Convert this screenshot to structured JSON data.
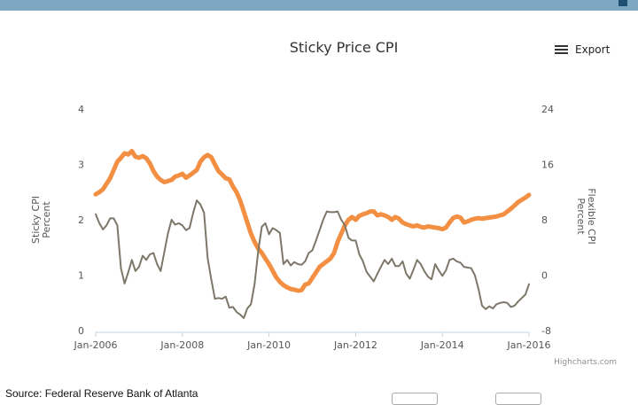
{
  "header": {
    "menu_icon": "menu-square-icon"
  },
  "export": {
    "label": "Export",
    "icon": "hamburger-menu-icon"
  },
  "credit": "Highcharts.com",
  "source": "Source: Federal Reserve Bank of Atlanta",
  "chart_data": {
    "type": "line",
    "title": "Sticky Price CPI",
    "xlabel": "",
    "ylabel_left": [
      "Sticky CPI",
      "Percent"
    ],
    "ylabel_right": [
      "Flexible CPI",
      "Percent"
    ],
    "x_tick_labels": [
      "Jan-2006",
      "Jan-2008",
      "Jan-2010",
      "Jan-2012",
      "Jan-2014",
      "Jan-2016"
    ],
    "y_left": {
      "min": 0,
      "max": 4,
      "ticks": [
        0,
        1,
        2,
        3,
        4
      ]
    },
    "y_right": {
      "min": -8,
      "max": 24,
      "ticks": [
        -8,
        0,
        8,
        16,
        24
      ]
    },
    "grid": false,
    "series": [
      {
        "name": "Sticky CPI",
        "axis": "left",
        "color": "#f28f43",
        "points": [
          [
            "2006-01",
            2.46
          ],
          [
            "2006-02",
            2.5
          ],
          [
            "2006-03",
            2.55
          ],
          [
            "2006-04",
            2.65
          ],
          [
            "2006-05",
            2.75
          ],
          [
            "2006-06",
            2.9
          ],
          [
            "2006-07",
            3.05
          ],
          [
            "2006-08",
            3.12
          ],
          [
            "2006-09",
            3.2
          ],
          [
            "2006-10",
            3.18
          ],
          [
            "2006-11",
            3.24
          ],
          [
            "2006-12",
            3.14
          ],
          [
            "2007-01",
            3.12
          ],
          [
            "2007-02",
            3.15
          ],
          [
            "2007-03",
            3.11
          ],
          [
            "2007-04",
            3.02
          ],
          [
            "2007-05",
            2.88
          ],
          [
            "2007-06",
            2.78
          ],
          [
            "2007-07",
            2.72
          ],
          [
            "2007-08",
            2.68
          ],
          [
            "2007-09",
            2.7
          ],
          [
            "2007-10",
            2.72
          ],
          [
            "2007-11",
            2.78
          ],
          [
            "2007-12",
            2.8
          ],
          [
            "2008-01",
            2.83
          ],
          [
            "2008-02",
            2.76
          ],
          [
            "2008-03",
            2.8
          ],
          [
            "2008-04",
            2.85
          ],
          [
            "2008-05",
            2.9
          ],
          [
            "2008-06",
            3.05
          ],
          [
            "2008-07",
            3.13
          ],
          [
            "2008-08",
            3.17
          ],
          [
            "2008-09",
            3.13
          ],
          [
            "2008-10",
            3.0
          ],
          [
            "2008-11",
            2.88
          ],
          [
            "2008-12",
            2.82
          ],
          [
            "2009-01",
            2.75
          ],
          [
            "2009-02",
            2.73
          ],
          [
            "2009-03",
            2.6
          ],
          [
            "2009-04",
            2.5
          ],
          [
            "2009-05",
            2.35
          ],
          [
            "2009-06",
            2.15
          ],
          [
            "2009-07",
            1.95
          ],
          [
            "2009-08",
            1.75
          ],
          [
            "2009-09",
            1.6
          ],
          [
            "2009-10",
            1.48
          ],
          [
            "2009-11",
            1.4
          ],
          [
            "2009-12",
            1.3
          ],
          [
            "2010-01",
            1.2
          ],
          [
            "2010-02",
            1.08
          ],
          [
            "2010-03",
            0.96
          ],
          [
            "2010-04",
            0.88
          ],
          [
            "2010-05",
            0.82
          ],
          [
            "2010-06",
            0.78
          ],
          [
            "2010-07",
            0.75
          ],
          [
            "2010-08",
            0.74
          ],
          [
            "2010-09",
            0.72
          ],
          [
            "2010-10",
            0.73
          ],
          [
            "2010-11",
            0.83
          ],
          [
            "2010-12",
            0.85
          ],
          [
            "2011-01",
            0.95
          ],
          [
            "2011-02",
            1.05
          ],
          [
            "2011-03",
            1.15
          ],
          [
            "2011-04",
            1.2
          ],
          [
            "2011-05",
            1.25
          ],
          [
            "2011-06",
            1.3
          ],
          [
            "2011-07",
            1.4
          ],
          [
            "2011-08",
            1.6
          ],
          [
            "2011-09",
            1.75
          ],
          [
            "2011-10",
            1.9
          ],
          [
            "2011-11",
            2.0
          ],
          [
            "2011-12",
            2.05
          ],
          [
            "2012-01",
            2.0
          ],
          [
            "2012-02",
            2.07
          ],
          [
            "2012-03",
            2.1
          ],
          [
            "2012-04",
            2.12
          ],
          [
            "2012-05",
            2.15
          ],
          [
            "2012-06",
            2.15
          ],
          [
            "2012-07",
            2.08
          ],
          [
            "2012-08",
            2.1
          ],
          [
            "2012-09",
            2.08
          ],
          [
            "2012-10",
            2.05
          ],
          [
            "2012-11",
            2.0
          ],
          [
            "2012-12",
            2.05
          ],
          [
            "2013-01",
            2.02
          ],
          [
            "2013-02",
            1.95
          ],
          [
            "2013-03",
            1.92
          ],
          [
            "2013-04",
            1.9
          ],
          [
            "2013-05",
            1.88
          ],
          [
            "2013-06",
            1.9
          ],
          [
            "2013-07",
            1.87
          ],
          [
            "2013-08",
            1.86
          ],
          [
            "2013-09",
            1.88
          ],
          [
            "2013-10",
            1.87
          ],
          [
            "2013-11",
            1.86
          ],
          [
            "2013-12",
            1.85
          ],
          [
            "2014-01",
            1.83
          ],
          [
            "2014-02",
            1.86
          ],
          [
            "2014-03",
            1.95
          ],
          [
            "2014-04",
            2.03
          ],
          [
            "2014-05",
            2.06
          ],
          [
            "2014-06",
            2.04
          ],
          [
            "2014-07",
            1.95
          ],
          [
            "2014-08",
            1.97
          ],
          [
            "2014-09",
            2.0
          ],
          [
            "2014-10",
            2.02
          ],
          [
            "2014-11",
            2.03
          ],
          [
            "2014-12",
            2.02
          ],
          [
            "2015-01",
            2.03
          ],
          [
            "2015-02",
            2.04
          ],
          [
            "2015-03",
            2.05
          ],
          [
            "2015-04",
            2.06
          ],
          [
            "2015-05",
            2.08
          ],
          [
            "2015-06",
            2.1
          ],
          [
            "2015-07",
            2.15
          ],
          [
            "2015-08",
            2.2
          ],
          [
            "2015-09",
            2.26
          ],
          [
            "2015-10",
            2.32
          ],
          [
            "2015-11",
            2.36
          ],
          [
            "2015-12",
            2.4
          ],
          [
            "2016-01",
            2.45
          ]
        ]
      },
      {
        "name": "Flexible CPI",
        "axis": "right",
        "color": "#7d776a",
        "points": [
          [
            "2006-01",
            8.8
          ],
          [
            "2006-02",
            7.5
          ],
          [
            "2006-03",
            6.6
          ],
          [
            "2006-04",
            7.2
          ],
          [
            "2006-05",
            8.2
          ],
          [
            "2006-06",
            8.2
          ],
          [
            "2006-07",
            7.2
          ],
          [
            "2006-08",
            1.0
          ],
          [
            "2006-09",
            -1.2
          ],
          [
            "2006-10",
            0.4
          ],
          [
            "2006-11",
            2.2
          ],
          [
            "2006-12",
            0.6
          ],
          [
            "2007-01",
            1.2
          ],
          [
            "2007-02",
            2.8
          ],
          [
            "2007-03",
            2.2
          ],
          [
            "2007-04",
            3.0
          ],
          [
            "2007-05",
            3.2
          ],
          [
            "2007-06",
            1.6
          ],
          [
            "2007-07",
            0.6
          ],
          [
            "2007-08",
            3.3
          ],
          [
            "2007-09",
            6.0
          ],
          [
            "2007-10",
            8.0
          ],
          [
            "2007-11",
            7.3
          ],
          [
            "2007-12",
            7.5
          ],
          [
            "2008-01",
            7.2
          ],
          [
            "2008-02",
            6.5
          ],
          [
            "2008-03",
            6.8
          ],
          [
            "2008-04",
            9.0
          ],
          [
            "2008-05",
            10.8
          ],
          [
            "2008-06",
            10.2
          ],
          [
            "2008-07",
            9.0
          ],
          [
            "2008-08",
            2.5
          ],
          [
            "2008-09",
            -0.6
          ],
          [
            "2008-10",
            -3.4
          ],
          [
            "2008-11",
            -3.3
          ],
          [
            "2008-12",
            -3.4
          ],
          [
            "2009-01",
            -3.1
          ],
          [
            "2009-02",
            -4.7
          ],
          [
            "2009-03",
            -4.6
          ],
          [
            "2009-04",
            -5.3
          ],
          [
            "2009-05",
            -5.7
          ],
          [
            "2009-06",
            -6.2
          ],
          [
            "2009-07",
            -4.8
          ],
          [
            "2009-08",
            -4.2
          ],
          [
            "2009-09",
            -1.3
          ],
          [
            "2009-10",
            3.5
          ],
          [
            "2009-11",
            7.0
          ],
          [
            "2009-12",
            7.5
          ],
          [
            "2010-01",
            5.9
          ],
          [
            "2010-02",
            6.8
          ],
          [
            "2010-03",
            6.5
          ],
          [
            "2010-04",
            6.1
          ],
          [
            "2010-05",
            1.6
          ],
          [
            "2010-06",
            2.2
          ],
          [
            "2010-07",
            1.4
          ],
          [
            "2010-08",
            1.9
          ],
          [
            "2010-09",
            1.6
          ],
          [
            "2010-10",
            1.5
          ],
          [
            "2010-11",
            2.0
          ],
          [
            "2010-12",
            3.2
          ],
          [
            "2011-01",
            3.6
          ],
          [
            "2011-02",
            5.0
          ],
          [
            "2011-03",
            6.5
          ],
          [
            "2011-04",
            8.0
          ],
          [
            "2011-05",
            9.2
          ],
          [
            "2011-06",
            9.1
          ],
          [
            "2011-07",
            9.1
          ],
          [
            "2011-08",
            9.2
          ],
          [
            "2011-09",
            8.0
          ],
          [
            "2011-10",
            7.2
          ],
          [
            "2011-11",
            5.4
          ],
          [
            "2011-12",
            5.0
          ],
          [
            "2012-01",
            5.0
          ],
          [
            "2012-02",
            3.0
          ],
          [
            "2012-03",
            2.0
          ],
          [
            "2012-04",
            0.5
          ],
          [
            "2012-05",
            -0.2
          ],
          [
            "2012-06",
            -0.9
          ],
          [
            "2012-07",
            0.2
          ],
          [
            "2012-08",
            1.2
          ],
          [
            "2012-09",
            2.2
          ],
          [
            "2012-10",
            1.6
          ],
          [
            "2012-11",
            2.4
          ],
          [
            "2012-12",
            1.3
          ],
          [
            "2013-01",
            1.3
          ],
          [
            "2013-02",
            2.0
          ],
          [
            "2013-03",
            0.2
          ],
          [
            "2013-04",
            -0.5
          ],
          [
            "2013-05",
            0.8
          ],
          [
            "2013-06",
            2.2
          ],
          [
            "2013-07",
            1.6
          ],
          [
            "2013-08",
            0.6
          ],
          [
            "2013-09",
            -0.2
          ],
          [
            "2013-10",
            -0.6
          ],
          [
            "2013-11",
            1.6
          ],
          [
            "2013-12",
            0.7
          ],
          [
            "2014-01",
            -0.1
          ],
          [
            "2014-02",
            0.7
          ],
          [
            "2014-03",
            2.2
          ],
          [
            "2014-04",
            2.4
          ],
          [
            "2014-05",
            2.0
          ],
          [
            "2014-06",
            1.8
          ],
          [
            "2014-07",
            1.2
          ],
          [
            "2014-08",
            1.1
          ],
          [
            "2014-09",
            1.0
          ],
          [
            "2014-10",
            0.0
          ],
          [
            "2014-11",
            -2.0
          ],
          [
            "2014-12",
            -4.4
          ],
          [
            "2015-01",
            -4.9
          ],
          [
            "2015-02",
            -4.5
          ],
          [
            "2015-03",
            -4.8
          ],
          [
            "2015-04",
            -4.2
          ],
          [
            "2015-05",
            -4.0
          ],
          [
            "2015-06",
            -3.9
          ],
          [
            "2015-07",
            -4.0
          ],
          [
            "2015-08",
            -4.6
          ],
          [
            "2015-09",
            -4.4
          ],
          [
            "2015-10",
            -3.8
          ],
          [
            "2015-11",
            -3.3
          ],
          [
            "2015-12",
            -2.8
          ],
          [
            "2016-01",
            -1.3
          ]
        ]
      }
    ]
  }
}
